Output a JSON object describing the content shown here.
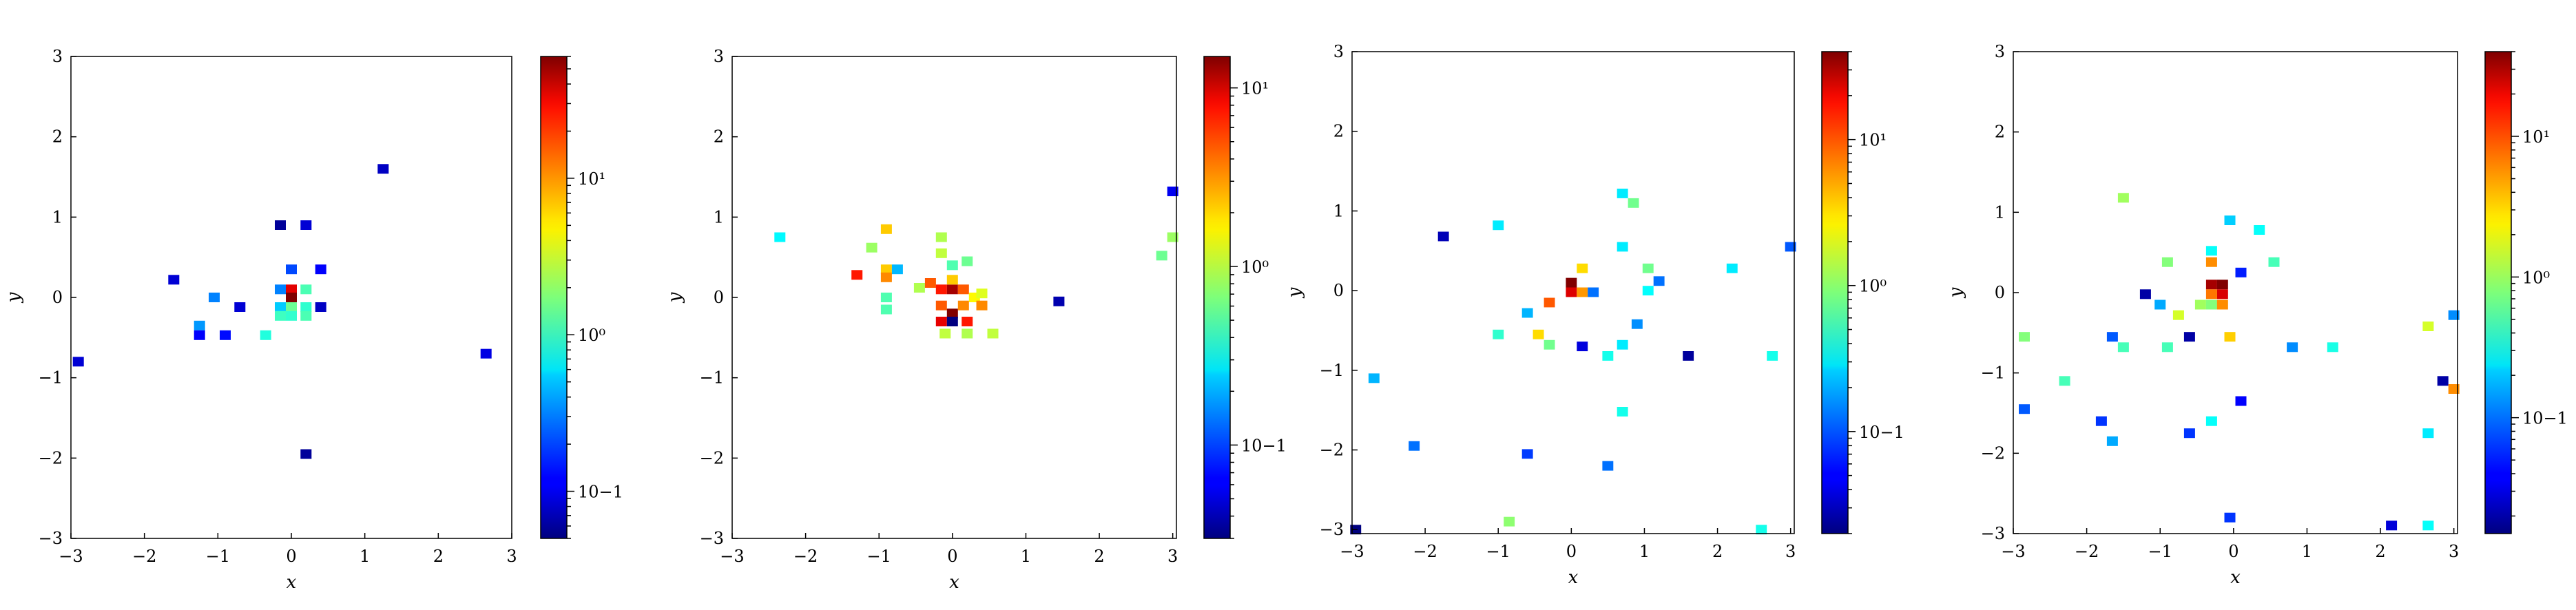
{
  "chart_data": [
    {
      "type": "heatmap",
      "xlabel": "x",
      "ylabel": "y",
      "xlim": [
        -3,
        3
      ],
      "ylim": [
        -3,
        3
      ],
      "xticks": [
        "−3",
        "−2",
        "−1",
        "0",
        "1",
        "2",
        "3"
      ],
      "yticks": [
        "−3",
        "−2",
        "−1",
        "0",
        "1",
        "2",
        "3"
      ],
      "colorbar": {
        "scale": "log",
        "min": 0.05,
        "max": 60,
        "colormap": "jet",
        "ticks": [
          {
            "value": 0.1,
            "label": "10−1"
          },
          {
            "value": 1,
            "label": "10⁰"
          },
          {
            "value": 10,
            "label": "10¹"
          }
        ]
      },
      "cells": [
        {
          "x": -2.9,
          "y": -0.8,
          "v": 0.09
        },
        {
          "x": -1.6,
          "y": 0.22,
          "v": 0.09
        },
        {
          "x": -1.25,
          "y": -0.35,
          "v": 0.35
        },
        {
          "x": -1.25,
          "y": -0.47,
          "v": 0.12
        },
        {
          "x": -1.05,
          "y": 0.0,
          "v": 0.3
        },
        {
          "x": -0.9,
          "y": -0.47,
          "v": 0.13
        },
        {
          "x": -0.7,
          "y": -0.12,
          "v": 0.09
        },
        {
          "x": -0.35,
          "y": -0.47,
          "v": 0.9
        },
        {
          "x": -0.15,
          "y": 0.9,
          "v": 0.06
        },
        {
          "x": 0.2,
          "y": 0.9,
          "v": 0.09
        },
        {
          "x": 0.0,
          "y": 0.35,
          "v": 0.2
        },
        {
          "x": 0.4,
          "y": 0.35,
          "v": 0.12
        },
        {
          "x": -0.15,
          "y": 0.1,
          "v": 0.3
        },
        {
          "x": 0.0,
          "y": 0.1,
          "v": 30
        },
        {
          "x": 0.0,
          "y": 0.0,
          "v": 60
        },
        {
          "x": 0.2,
          "y": 0.1,
          "v": 1.2
        },
        {
          "x": -0.15,
          "y": -0.12,
          "v": 0.5
        },
        {
          "x": 0.0,
          "y": -0.12,
          "v": 1.5
        },
        {
          "x": 0.2,
          "y": -0.12,
          "v": 1.0
        },
        {
          "x": -0.15,
          "y": -0.23,
          "v": 1.1
        },
        {
          "x": 0.0,
          "y": -0.23,
          "v": 1.0
        },
        {
          "x": 0.2,
          "y": -0.23,
          "v": 1.2
        },
        {
          "x": 0.4,
          "y": -0.12,
          "v": 0.08
        },
        {
          "x": 1.25,
          "y": 1.6,
          "v": 0.08
        },
        {
          "x": 2.65,
          "y": -0.7,
          "v": 0.1
        },
        {
          "x": 0.2,
          "y": -1.95,
          "v": 0.06
        }
      ]
    },
    {
      "type": "heatmap",
      "xlabel": "x",
      "ylabel": "y",
      "xlim": [
        -3,
        3.05
      ],
      "ylim": [
        -3,
        3
      ],
      "xticks": [
        "−3",
        "−2",
        "−1",
        "0",
        "1",
        "2",
        "3"
      ],
      "yticks": [
        "−3",
        "−2",
        "−1",
        "0",
        "1",
        "2",
        "3"
      ],
      "colorbar": {
        "scale": "log",
        "min": 0.03,
        "max": 15,
        "colormap": "jet",
        "ticks": [
          {
            "value": 0.1,
            "label": "10−1"
          },
          {
            "value": 1,
            "label": "10⁰"
          },
          {
            "value": 10,
            "label": "10¹"
          }
        ]
      },
      "cells": [
        {
          "x": -2.35,
          "y": 0.75,
          "v": 0.3
        },
        {
          "x": -1.3,
          "y": 0.28,
          "v": 6
        },
        {
          "x": -1.1,
          "y": 0.62,
          "v": 0.8
        },
        {
          "x": -0.9,
          "y": 0.85,
          "v": 2
        },
        {
          "x": -0.9,
          "y": 0.35,
          "v": 2
        },
        {
          "x": -0.75,
          "y": 0.35,
          "v": 0.2
        },
        {
          "x": -0.9,
          "y": 0.25,
          "v": 3
        },
        {
          "x": -0.9,
          "y": 0.0,
          "v": 0.5
        },
        {
          "x": -0.9,
          "y": -0.15,
          "v": 0.5
        },
        {
          "x": -0.45,
          "y": 0.12,
          "v": 0.9
        },
        {
          "x": -0.3,
          "y": 0.18,
          "v": 4
        },
        {
          "x": -0.15,
          "y": 0.1,
          "v": 6
        },
        {
          "x": 0.0,
          "y": 0.1,
          "v": 12
        },
        {
          "x": 0.15,
          "y": 0.1,
          "v": 4
        },
        {
          "x": -0.15,
          "y": 0.55,
          "v": 1.0
        },
        {
          "x": -0.15,
          "y": 0.75,
          "v": 0.9
        },
        {
          "x": 0.0,
          "y": 0.4,
          "v": 0.5
        },
        {
          "x": 0.2,
          "y": 0.45,
          "v": 0.6
        },
        {
          "x": 0.0,
          "y": 0.22,
          "v": 2
        },
        {
          "x": 0.3,
          "y": 0.0,
          "v": 1.5
        },
        {
          "x": 0.4,
          "y": 0.05,
          "v": 1.2
        },
        {
          "x": 0.4,
          "y": -0.1,
          "v": 3
        },
        {
          "x": -0.15,
          "y": -0.1,
          "v": 4
        },
        {
          "x": 0.0,
          "y": -0.2,
          "v": 15
        },
        {
          "x": 0.15,
          "y": -0.1,
          "v": 3
        },
        {
          "x": -0.15,
          "y": -0.3,
          "v": 8
        },
        {
          "x": 0.0,
          "y": -0.3,
          "v": 0.03
        },
        {
          "x": 0.2,
          "y": -0.3,
          "v": 6
        },
        {
          "x": 0.2,
          "y": -0.45,
          "v": 0.9
        },
        {
          "x": -0.1,
          "y": -0.45,
          "v": 1.0
        },
        {
          "x": 0.55,
          "y": -0.45,
          "v": 1.0
        },
        {
          "x": 1.45,
          "y": -0.05,
          "v": 0.04
        },
        {
          "x": 2.85,
          "y": 0.52,
          "v": 0.6
        },
        {
          "x": 3.0,
          "y": 0.75,
          "v": 0.8
        },
        {
          "x": 3.0,
          "y": 1.32,
          "v": 0.06
        }
      ]
    },
    {
      "type": "heatmap",
      "xlabel": "x",
      "ylabel": "y",
      "xlim": [
        -3,
        3.05
      ],
      "ylim": [
        -3.05,
        3
      ],
      "xticks": [
        "−3",
        "−2",
        "−1",
        "0",
        "1",
        "2",
        "3"
      ],
      "yticks": [
        "−3",
        "−2",
        "−1",
        "0",
        "1",
        "2",
        "3"
      ],
      "colorbar": {
        "scale": "log",
        "min": 0.02,
        "max": 40,
        "colormap": "jet",
        "ticks": [
          {
            "value": 0.1,
            "label": "10−1"
          },
          {
            "value": 1,
            "label": "10⁰"
          },
          {
            "value": 10,
            "label": "10¹"
          }
        ]
      },
      "cells": [
        {
          "x": -2.95,
          "y": -3.0,
          "v": 0.02
        },
        {
          "x": -2.7,
          "y": -1.1,
          "v": 0.2
        },
        {
          "x": -2.15,
          "y": -1.95,
          "v": 0.12
        },
        {
          "x": -1.75,
          "y": 0.68,
          "v": 0.03
        },
        {
          "x": -1.0,
          "y": 0.82,
          "v": 0.3
        },
        {
          "x": -1.0,
          "y": -0.55,
          "v": 0.5
        },
        {
          "x": -0.85,
          "y": -2.9,
          "v": 1.0
        },
        {
          "x": -0.6,
          "y": -0.28,
          "v": 0.2
        },
        {
          "x": -0.6,
          "y": -2.05,
          "v": 0.08
        },
        {
          "x": -0.45,
          "y": -0.55,
          "v": 3
        },
        {
          "x": -0.3,
          "y": -0.15,
          "v": 8
        },
        {
          "x": -0.3,
          "y": -0.68,
          "v": 0.8
        },
        {
          "x": 0.0,
          "y": 0.1,
          "v": 40
        },
        {
          "x": 0.0,
          "y": -0.02,
          "v": 20
        },
        {
          "x": 0.15,
          "y": 0.28,
          "v": 3
        },
        {
          "x": 0.15,
          "y": -0.02,
          "v": 5
        },
        {
          "x": 0.3,
          "y": -0.02,
          "v": 0.12
        },
        {
          "x": 0.15,
          "y": -0.7,
          "v": 0.04
        },
        {
          "x": 0.5,
          "y": -0.82,
          "v": 0.4
        },
        {
          "x": 0.5,
          "y": -2.2,
          "v": 0.12
        },
        {
          "x": 0.7,
          "y": 1.22,
          "v": 0.3
        },
        {
          "x": 0.7,
          "y": 0.55,
          "v": 0.3
        },
        {
          "x": 0.7,
          "y": -0.68,
          "v": 0.3
        },
        {
          "x": 0.7,
          "y": -1.52,
          "v": 0.4
        },
        {
          "x": 0.85,
          "y": 1.1,
          "v": 0.8
        },
        {
          "x": 0.9,
          "y": -0.42,
          "v": 0.15
        },
        {
          "x": 1.05,
          "y": 0.28,
          "v": 0.8
        },
        {
          "x": 1.05,
          "y": 0.0,
          "v": 0.35
        },
        {
          "x": 1.2,
          "y": 0.12,
          "v": 0.12
        },
        {
          "x": 1.6,
          "y": -0.82,
          "v": 0.025
        },
        {
          "x": 2.2,
          "y": 0.28,
          "v": 0.3
        },
        {
          "x": 2.6,
          "y": -3.0,
          "v": 0.4
        },
        {
          "x": 2.75,
          "y": -0.82,
          "v": 0.4
        },
        {
          "x": 3.0,
          "y": 0.55,
          "v": 0.1
        }
      ]
    },
    {
      "type": "heatmap",
      "xlabel": "x",
      "ylabel": "y",
      "xlim": [
        -3,
        3.05
      ],
      "ylim": [
        -3,
        3
      ],
      "xticks": [
        "−3",
        "−2",
        "−1",
        "0",
        "1",
        "2",
        "3"
      ],
      "yticks": [
        "−3",
        "−2",
        "−1",
        "0",
        "1",
        "2",
        "3"
      ],
      "colorbar": {
        "scale": "log",
        "min": 0.015,
        "max": 40,
        "colormap": "jet",
        "ticks": [
          {
            "value": 0.1,
            "label": "10−1"
          },
          {
            "value": 1,
            "label": "10⁰"
          },
          {
            "value": 10,
            "label": "10¹"
          }
        ]
      },
      "cells": [
        {
          "x": -2.85,
          "y": -0.55,
          "v": 0.8
        },
        {
          "x": -2.85,
          "y": -1.45,
          "v": 0.08
        },
        {
          "x": -2.3,
          "y": -1.1,
          "v": 0.5
        },
        {
          "x": -1.8,
          "y": -1.6,
          "v": 0.06
        },
        {
          "x": -1.65,
          "y": -0.55,
          "v": 0.08
        },
        {
          "x": -1.65,
          "y": -1.85,
          "v": 0.15
        },
        {
          "x": -1.5,
          "y": -0.68,
          "v": 0.5
        },
        {
          "x": -1.5,
          "y": 1.18,
          "v": 1.0
        },
        {
          "x": -1.2,
          "y": -0.02,
          "v": 0.02
        },
        {
          "x": -1.0,
          "y": -0.15,
          "v": 0.15
        },
        {
          "x": -0.9,
          "y": 0.38,
          "v": 0.8
        },
        {
          "x": -0.9,
          "y": -0.68,
          "v": 0.5
        },
        {
          "x": -0.75,
          "y": -0.28,
          "v": 1.5
        },
        {
          "x": -0.6,
          "y": -0.55,
          "v": 0.02
        },
        {
          "x": -0.6,
          "y": -1.75,
          "v": 0.06
        },
        {
          "x": -0.45,
          "y": -0.15,
          "v": 1.0
        },
        {
          "x": -0.3,
          "y": 0.52,
          "v": 0.3
        },
        {
          "x": -0.3,
          "y": 0.38,
          "v": 5
        },
        {
          "x": -0.3,
          "y": 0.1,
          "v": 30
        },
        {
          "x": -0.15,
          "y": 0.1,
          "v": 40
        },
        {
          "x": -0.15,
          "y": -0.02,
          "v": 20
        },
        {
          "x": -0.3,
          "y": -0.02,
          "v": 6
        },
        {
          "x": -0.3,
          "y": -0.15,
          "v": 0.8
        },
        {
          "x": -0.15,
          "y": -0.15,
          "v": 5
        },
        {
          "x": -0.3,
          "y": -1.6,
          "v": 0.3
        },
        {
          "x": -0.05,
          "y": 0.9,
          "v": 0.2
        },
        {
          "x": -0.05,
          "y": -0.55,
          "v": 3
        },
        {
          "x": 0.1,
          "y": 0.25,
          "v": 0.05
        },
        {
          "x": 0.1,
          "y": -1.35,
          "v": 0.04
        },
        {
          "x": 0.35,
          "y": 0.78,
          "v": 0.3
        },
        {
          "x": 0.55,
          "y": 0.38,
          "v": 0.5
        },
        {
          "x": -0.05,
          "y": -2.8,
          "v": 0.06
        },
        {
          "x": 0.8,
          "y": -0.68,
          "v": 0.12
        },
        {
          "x": 1.35,
          "y": -0.68,
          "v": 0.35
        },
        {
          "x": 2.15,
          "y": -2.9,
          "v": 0.03
        },
        {
          "x": 2.65,
          "y": -0.42,
          "v": 1.5
        },
        {
          "x": 2.65,
          "y": -1.75,
          "v": 0.25
        },
        {
          "x": 2.65,
          "y": -2.9,
          "v": 0.3
        },
        {
          "x": 2.85,
          "y": -1.1,
          "v": 0.02
        },
        {
          "x": 3.0,
          "y": -1.2,
          "v": 5
        },
        {
          "x": 3.0,
          "y": -0.28,
          "v": 0.12
        }
      ]
    }
  ]
}
